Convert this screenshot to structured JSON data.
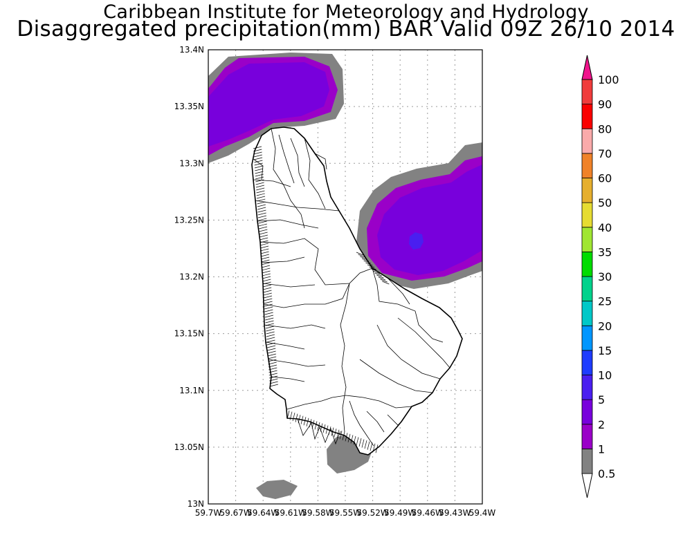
{
  "title_line1": "Caribbean Institute for Meteorology and Hydrology",
  "title_line2": "Disaggregated precipitation(mm) BAR Valid 09Z 26/10 2014",
  "map": {
    "lat_range": [
      13.0,
      13.4
    ],
    "lon_range": [
      -59.7,
      -59.4
    ],
    "lat_ticks": [
      "13.4N",
      "13.35N",
      "13.3N",
      "13.25N",
      "13.2N",
      "13.15N",
      "13.1N",
      "13.05N",
      "13N"
    ],
    "lon_ticks": [
      "59.7W",
      "59.67W",
      "59.64W",
      "59.61W",
      "59.58W",
      "59.55W",
      "59.52W",
      "59.49W",
      "59.46W",
      "59.43W",
      "59.4W"
    ],
    "grid": true
  },
  "colorbar": {
    "levels": [
      {
        "label": "0.5",
        "color": "#ffffff"
      },
      {
        "label": "1",
        "color": "#828282"
      },
      {
        "label": "2",
        "color": "#9a00c8"
      },
      {
        "label": "5",
        "color": "#7800dc"
      },
      {
        "label": "10",
        "color": "#4a1ef0"
      },
      {
        "label": "15",
        "color": "#1e3cff"
      },
      {
        "label": "20",
        "color": "#0096ff"
      },
      {
        "label": "25",
        "color": "#00c8c8"
      },
      {
        "label": "30",
        "color": "#00d28c"
      },
      {
        "label": "35",
        "color": "#00dc00"
      },
      {
        "label": "40",
        "color": "#a0e632"
      },
      {
        "label": "50",
        "color": "#e6dc32"
      },
      {
        "label": "60",
        "color": "#e6af2d"
      },
      {
        "label": "70",
        "color": "#f08228"
      },
      {
        "label": "80",
        "color": "#faaaaa"
      },
      {
        "label": "90",
        "color": "#fa0000"
      },
      {
        "label": "100",
        "color": "#f03c3c"
      }
    ],
    "top_arrow_color": "#f0148c"
  }
}
